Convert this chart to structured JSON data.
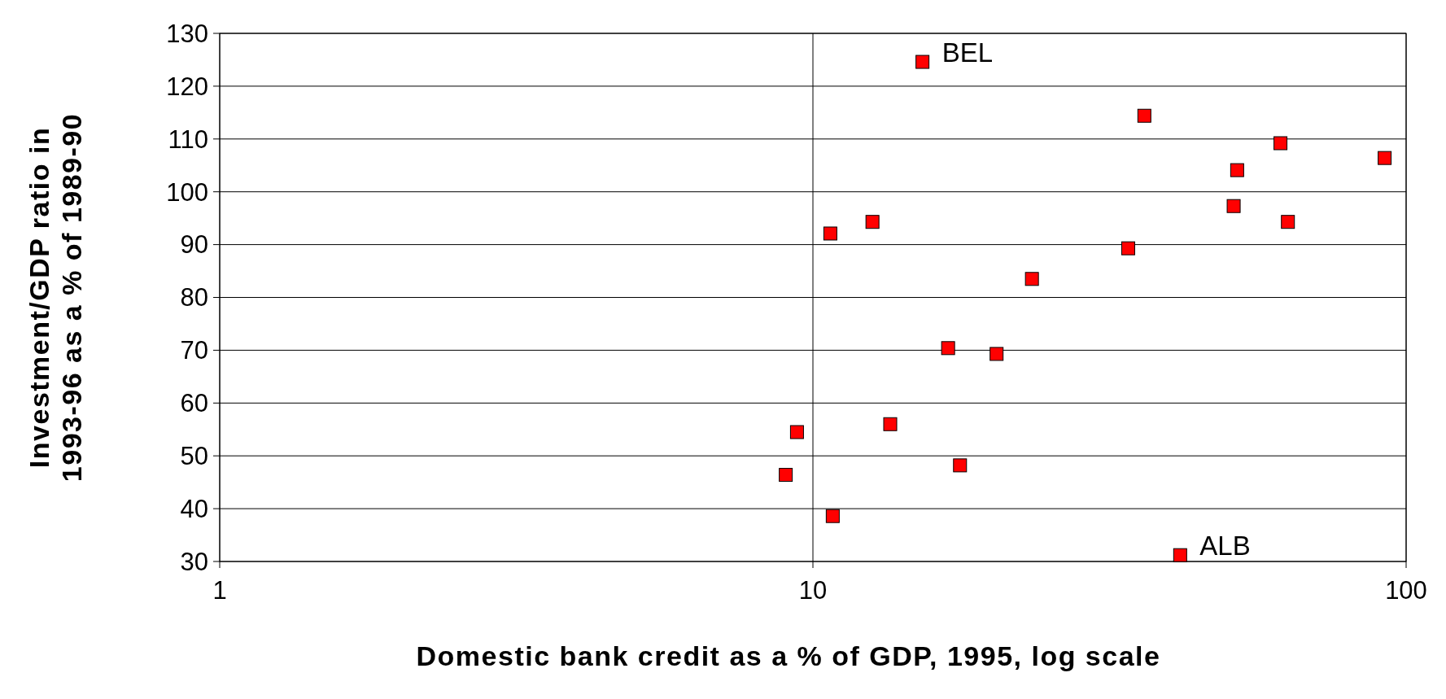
{
  "chart_data": {
    "type": "scatter",
    "xlabel": "Domestic bank credit as a % of GDP, 1995, log scale",
    "ylabel": "Investment/GDP ratio in 1993-96 as a % of 1989-90",
    "log": "x",
    "xlim": [
      1,
      100
    ],
    "xticks": [
      1,
      10,
      100
    ],
    "ylim": [
      30,
      130
    ],
    "yticks": [
      30,
      40,
      50,
      60,
      70,
      80,
      90,
      100,
      110,
      120,
      130
    ],
    "grid": true,
    "marker": "square",
    "series": [
      {
        "color": "#ff0000",
        "x": [
          15.3,
          36.2,
          61.4,
          92,
          51.9,
          51.2,
          63.2,
          12.6,
          10.7,
          34.0,
          23.4,
          16.9,
          20.4,
          13.5,
          9.4,
          9.0,
          17.7,
          10.8,
          41.6
        ],
        "values": [
          124.6,
          114.4,
          109.2,
          106.4,
          104.1,
          97.3,
          94.3,
          94.3,
          92.1,
          89.3,
          83.5,
          70.4,
          69.3,
          56.0,
          54.5,
          46.4,
          48.2,
          38.6,
          31.2
        ]
      }
    ],
    "annotations": [
      {
        "text": "BEL",
        "x": 15.3,
        "y": 124.6
      },
      {
        "text": "ALB",
        "x": 41.6,
        "y": 31.2
      }
    ]
  }
}
